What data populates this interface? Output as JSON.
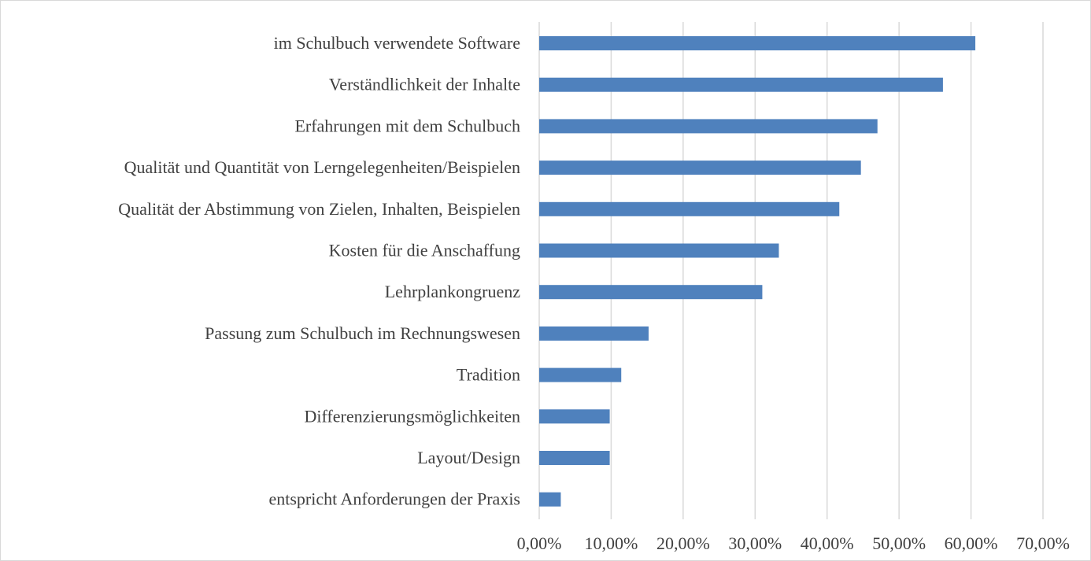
{
  "chart_data": {
    "type": "bar",
    "orientation": "horizontal",
    "title": "",
    "xlabel": "",
    "ylabel": "",
    "categories": [
      "im Schulbuch verwendete Software",
      "Verständlichkeit der Inhalte",
      "Erfahrungen mit dem Schulbuch",
      "Qualität und Quantität von Lerngelegenheiten/Beispielen",
      "Qualität der Abstimmung von Zielen, Inhalten, Beispielen",
      "Kosten für die Anschaffung",
      "Lehrplankongruenz",
      "Passung zum  Schulbuch im Rechnungswesen",
      "Tradition",
      "Differenzierungsmöglichkeiten",
      "Layout/Design",
      "entspricht Anforderungen der Praxis"
    ],
    "values": [
      60.6,
      56.1,
      47.0,
      44.7,
      41.7,
      33.3,
      31.0,
      15.2,
      11.4,
      9.8,
      9.8,
      3.0
    ],
    "xlim": [
      0,
      70
    ],
    "xticks": [
      0,
      10,
      20,
      30,
      40,
      50,
      60,
      70
    ],
    "xtick_labels": [
      "0,00%",
      "10,00%",
      "20,00%",
      "30,00%",
      "40,00%",
      "50,00%",
      "60,00%",
      "70,00%"
    ],
    "grid": true,
    "legend": "none",
    "bar_color": "#4f81bd",
    "grid_color": "#d9d9d9"
  }
}
